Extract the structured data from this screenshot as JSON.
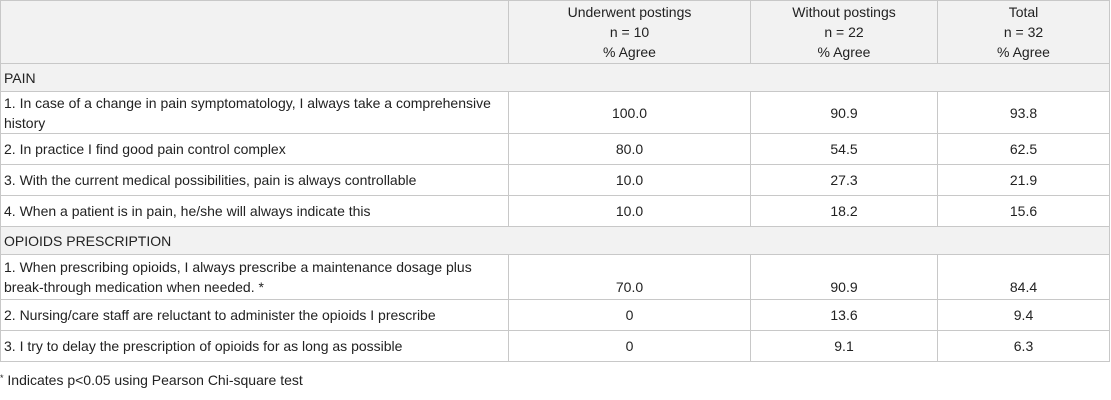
{
  "columns": [
    {
      "line1": "Underwent postings",
      "line2": "n = 10",
      "line3": "% Agree"
    },
    {
      "line1": "Without postings",
      "line2": "n = 22",
      "line3": "% Agree"
    },
    {
      "line1": "Total",
      "line2": "n = 32",
      "line3": "% Agree"
    }
  ],
  "sections": [
    {
      "title": "PAIN",
      "rows": [
        {
          "statement": "1. In case of a change in pain symptomatology, I always take a comprehensive history",
          "values": [
            "100.0",
            "90.9",
            "93.8"
          ]
        },
        {
          "statement": "2. In practice I find good pain control complex",
          "values": [
            "80.0",
            "54.5",
            "62.5"
          ]
        },
        {
          "statement": "3. With the current medical possibilities, pain is always controllable",
          "values": [
            "10.0",
            "27.3",
            "21.9"
          ]
        },
        {
          "statement": "4. When a patient is in pain, he/she will always indicate this",
          "values": [
            "10.0",
            "18.2",
            "15.6"
          ]
        }
      ]
    },
    {
      "title": "OPIOIDS PRESCRIPTION",
      "rows": [
        {
          "statement": "1. When prescribing opioids, I always prescribe a maintenance dosage plus break-through medication when needed. *",
          "values": [
            "70.0",
            "90.9",
            "84.4"
          ]
        },
        {
          "statement": "2. Nursing/care staff are reluctant to administer the opioids I prescribe",
          "values": [
            "0",
            "13.6",
            "9.4"
          ]
        },
        {
          "statement": "3. I try to delay the prescription of opioids for as long as possible",
          "values": [
            "0",
            "9.1",
            "6.3"
          ]
        }
      ]
    }
  ],
  "footnote": {
    "marker": "*",
    "text": "Indicates p<0.05 using Pearson Chi-square test"
  }
}
